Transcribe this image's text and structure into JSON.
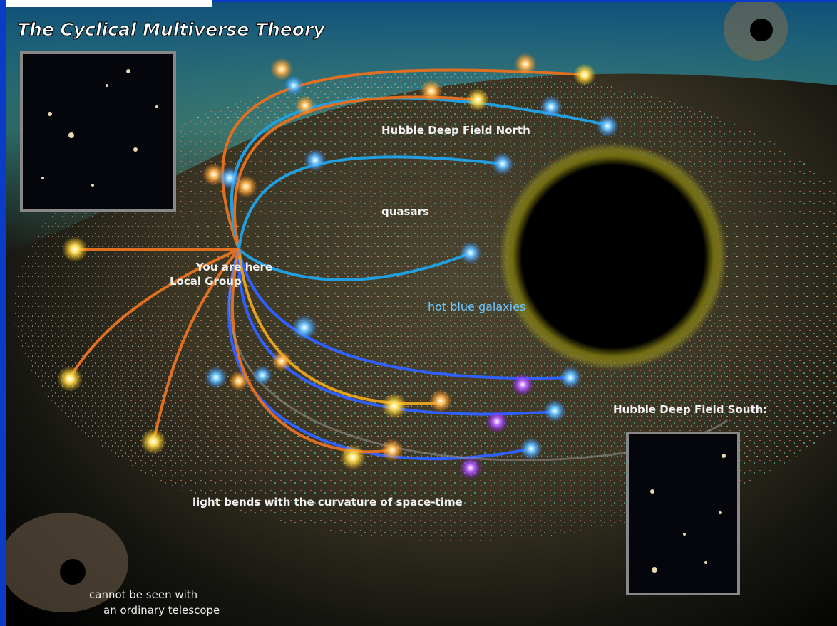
{
  "title": "The Cyclical Multiverse Theory",
  "labels": {
    "hubble_north": "Hubble Deep Field North",
    "quasars": "quasars",
    "you_are_here": "You are here",
    "local_group": "Local Group",
    "hot_blue_galaxies": "hot blue galaxies",
    "hubble_south": "Hubble Deep Field South:",
    "light_bends": "light bends with the curvature of space-time",
    "cannot_be_seen": [
      "cannot be seen with",
      "an ordinary telescope"
    ]
  }
}
